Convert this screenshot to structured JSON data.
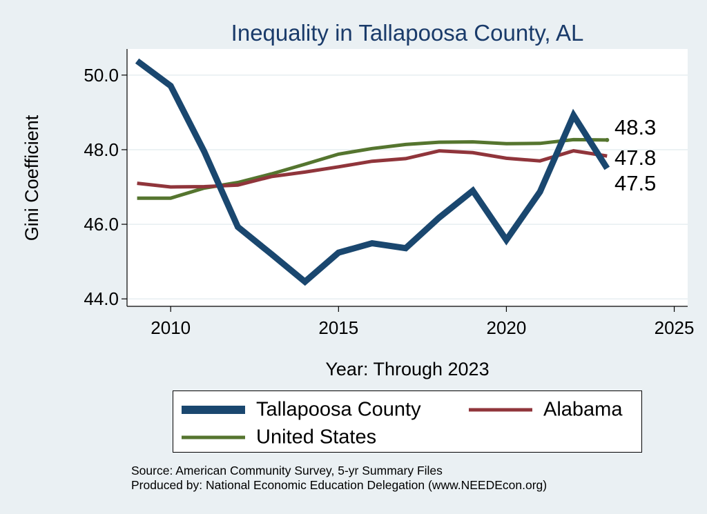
{
  "chart_data": {
    "type": "line",
    "title": "Inequality in Tallapoosa County, AL",
    "xlabel": "Year: Through 2023",
    "ylabel": "Gini Coefficient",
    "xlim": [
      2008.7,
      2025.4
    ],
    "ylim": [
      43.8,
      50.7
    ],
    "xticks": [
      2010,
      2015,
      2020,
      2025
    ],
    "yticks": [
      44.0,
      46.0,
      48.0,
      50.0
    ],
    "ytick_labels": [
      "44.0",
      "46.0",
      "48.0",
      "50.0"
    ],
    "grid": true,
    "x": [
      2009,
      2010,
      2011,
      2012,
      2013,
      2014,
      2015,
      2016,
      2017,
      2018,
      2019,
      2020,
      2021,
      2022,
      2023
    ],
    "series": [
      {
        "name": "Tallapoosa County",
        "color": "#1a476f",
        "values": [
          50.38,
          49.71,
          47.95,
          45.93,
          45.2,
          44.46,
          45.24,
          45.49,
          45.36,
          46.18,
          46.9,
          45.58,
          46.87,
          48.92,
          47.5
        ],
        "end_label": "47.5"
      },
      {
        "name": "Alabama",
        "color": "#90353b",
        "values": [
          47.1,
          47.0,
          47.01,
          47.05,
          47.28,
          47.4,
          47.54,
          47.69,
          47.76,
          47.97,
          47.92,
          47.77,
          47.7,
          47.97,
          47.83
        ],
        "end_label": "47.8"
      },
      {
        "name": "United States",
        "color": "#55752f",
        "values": [
          46.7,
          46.7,
          46.97,
          47.12,
          47.35,
          47.61,
          47.88,
          48.03,
          48.14,
          48.2,
          48.21,
          48.16,
          48.17,
          48.27,
          48.26
        ],
        "end_label": "48.3"
      }
    ],
    "legend": {
      "placement": "bottom",
      "items": [
        "Tallapoosa County",
        "Alabama",
        "United States"
      ]
    }
  },
  "source": {
    "line1": "Source: American Community Survey, 5-yr Summary Files",
    "line2": "Produced by: National Economic Education Delegation (www.NEEDEcon.org)"
  }
}
